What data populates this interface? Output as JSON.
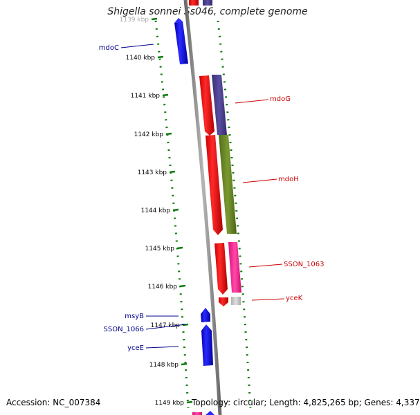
{
  "title": "Shigella sonnei Ss046, complete genome",
  "accession_text": "Accession: NC_007384",
  "summary_text": "Topology: circular; Length: 4,825,265 bp; Genes: 4,337",
  "ruler": {
    "unit": "kbp",
    "ticks": [
      {
        "label": "1139 kbp",
        "faded": true
      },
      {
        "label": "1140 kbp"
      },
      {
        "label": "1141 kbp"
      },
      {
        "label": "1142 kbp"
      },
      {
        "label": "1143 kbp"
      },
      {
        "label": "1144 kbp"
      },
      {
        "label": "1145 kbp"
      },
      {
        "label": "1146 kbp"
      },
      {
        "label": "1147 kbp"
      },
      {
        "label": "1148 kbp"
      },
      {
        "label": "1149 kbp"
      }
    ]
  },
  "gene_labels": [
    {
      "name": "mdoC",
      "color": "#00008b"
    },
    {
      "name": "mdoG",
      "color": "#cc0000"
    },
    {
      "name": "mdoH",
      "color": "#cc0000"
    },
    {
      "name": "SSON_1063",
      "color": "#cc0000"
    },
    {
      "name": "yceK",
      "color": "#cc0000"
    },
    {
      "name": "msyB",
      "color": "#00008b"
    },
    {
      "name": "SSON_1066",
      "color": "#00008b"
    },
    {
      "name": "yceE",
      "color": "#00008b"
    }
  ],
  "colors": {
    "forward_cds": "#ff0000",
    "reverse_cds": "#0000ff",
    "cog_purple": "#4b3f8c",
    "cog_olive": "#6b8e23",
    "cog_pink": "#ff1493",
    "cog_gray": "#c8c8c8",
    "backbone": "#808080",
    "tick_green": "#0a7a0a"
  }
}
